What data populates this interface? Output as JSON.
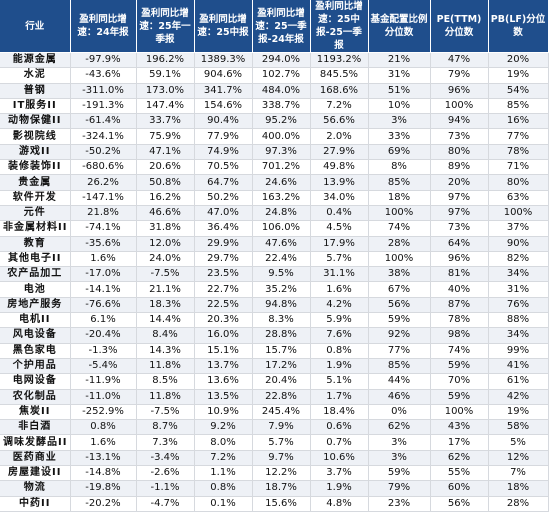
{
  "headers": [
    "行业",
    "盈利同比增速：24年报",
    "盈利同比增速：25年一季报",
    "盈利同比增速：25中报",
    "盈利同比增速：25一季报-24年报",
    "盈利同比增速：25中报-25一季报",
    "基金配置比例分位数",
    "PE(TTM)分位数",
    "PB(LF)分位数"
  ],
  "rows": [
    [
      "能源金属",
      "-97.9%",
      "196.2%",
      "1389.3%",
      "294.0%",
      "1193.2%",
      "21%",
      "47%",
      "20%"
    ],
    [
      "水泥",
      "-43.6%",
      "59.1%",
      "904.6%",
      "102.7%",
      "845.5%",
      "31%",
      "79%",
      "19%"
    ],
    [
      "普钢",
      "-311.0%",
      "173.0%",
      "341.7%",
      "484.0%",
      "168.6%",
      "51%",
      "96%",
      "54%"
    ],
    [
      "IT服务II",
      "-191.3%",
      "147.4%",
      "154.6%",
      "338.7%",
      "7.2%",
      "10%",
      "100%",
      "85%"
    ],
    [
      "动物保健II",
      "-61.4%",
      "33.7%",
      "90.4%",
      "95.2%",
      "56.6%",
      "3%",
      "94%",
      "16%"
    ],
    [
      "影视院线",
      "-324.1%",
      "75.9%",
      "77.9%",
      "400.0%",
      "2.0%",
      "33%",
      "73%",
      "77%"
    ],
    [
      "游戏II",
      "-50.2%",
      "47.1%",
      "74.9%",
      "97.3%",
      "27.9%",
      "69%",
      "80%",
      "78%"
    ],
    [
      "装修装饰II",
      "-680.6%",
      "20.6%",
      "70.5%",
      "701.2%",
      "49.8%",
      "8%",
      "89%",
      "71%"
    ],
    [
      "贵金属",
      "26.2%",
      "50.8%",
      "64.7%",
      "24.6%",
      "13.9%",
      "85%",
      "20%",
      "80%"
    ],
    [
      "软件开发",
      "-147.1%",
      "16.2%",
      "50.2%",
      "163.2%",
      "34.0%",
      "18%",
      "97%",
      "63%"
    ],
    [
      "元件",
      "21.8%",
      "46.6%",
      "47.0%",
      "24.8%",
      "0.4%",
      "100%",
      "97%",
      "100%"
    ],
    [
      "非金属材料II",
      "-74.1%",
      "31.8%",
      "36.4%",
      "106.0%",
      "4.5%",
      "74%",
      "73%",
      "37%"
    ],
    [
      "教育",
      "-35.6%",
      "12.0%",
      "29.9%",
      "47.6%",
      "17.9%",
      "28%",
      "64%",
      "90%"
    ],
    [
      "其他电子II",
      "1.6%",
      "24.0%",
      "29.7%",
      "22.4%",
      "5.7%",
      "100%",
      "96%",
      "82%"
    ],
    [
      "农产品加工",
      "-17.0%",
      "-7.5%",
      "23.5%",
      "9.5%",
      "31.1%",
      "38%",
      "81%",
      "34%"
    ],
    [
      "电池",
      "-14.1%",
      "21.1%",
      "22.7%",
      "35.2%",
      "1.6%",
      "67%",
      "40%",
      "31%"
    ],
    [
      "房地产服务",
      "-76.6%",
      "18.3%",
      "22.5%",
      "94.8%",
      "4.2%",
      "56%",
      "87%",
      "76%"
    ],
    [
      "电机II",
      "6.1%",
      "14.4%",
      "20.3%",
      "8.3%",
      "5.9%",
      "59%",
      "78%",
      "88%"
    ],
    [
      "风电设备",
      "-20.4%",
      "8.4%",
      "16.0%",
      "28.8%",
      "7.6%",
      "92%",
      "98%",
      "34%"
    ],
    [
      "黑色家电",
      "-1.3%",
      "14.3%",
      "15.1%",
      "15.7%",
      "0.8%",
      "77%",
      "74%",
      "99%"
    ],
    [
      "个护用品",
      "-5.4%",
      "11.8%",
      "13.7%",
      "17.2%",
      "1.9%",
      "85%",
      "59%",
      "41%"
    ],
    [
      "电网设备",
      "-11.9%",
      "8.5%",
      "13.6%",
      "20.4%",
      "5.1%",
      "44%",
      "70%",
      "61%"
    ],
    [
      "农化制品",
      "-11.0%",
      "11.8%",
      "13.5%",
      "22.8%",
      "1.7%",
      "46%",
      "59%",
      "42%"
    ],
    [
      "焦炭II",
      "-252.9%",
      "-7.5%",
      "10.9%",
      "245.4%",
      "18.4%",
      "0%",
      "100%",
      "19%"
    ],
    [
      "非白酒",
      "0.8%",
      "8.7%",
      "9.2%",
      "7.9%",
      "0.6%",
      "62%",
      "43%",
      "58%"
    ],
    [
      "调味发酵品II",
      "1.6%",
      "7.3%",
      "8.0%",
      "5.7%",
      "0.7%",
      "3%",
      "17%",
      "5%"
    ],
    [
      "医药商业",
      "-13.1%",
      "-3.4%",
      "7.2%",
      "9.7%",
      "10.6%",
      "3%",
      "62%",
      "12%"
    ],
    [
      "房屋建设II",
      "-14.8%",
      "-2.6%",
      "1.1%",
      "12.2%",
      "3.7%",
      "59%",
      "55%",
      "7%"
    ],
    [
      "物流",
      "-19.8%",
      "-1.1%",
      "0.8%",
      "18.7%",
      "1.9%",
      "79%",
      "60%",
      "18%"
    ],
    [
      "中药II",
      "-20.2%",
      "-4.7%",
      "0.1%",
      "15.6%",
      "4.8%",
      "23%",
      "56%",
      "28%"
    ]
  ]
}
